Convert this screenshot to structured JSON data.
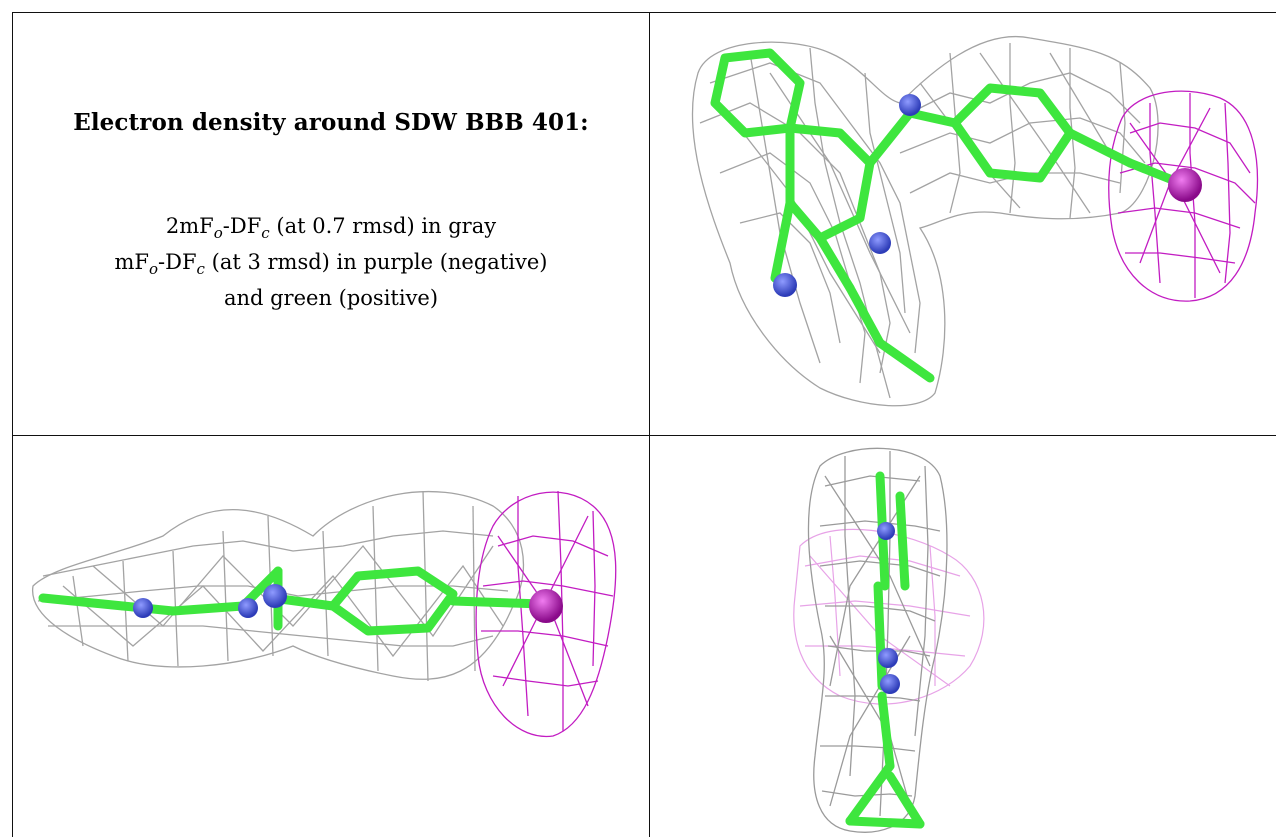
{
  "caption": {
    "title": "Electron density around SDW BBB 401:",
    "line1": "2mFo-DFc (at 0.7 rmsd) in gray",
    "line2": "mFo-DFc (at 3 rmsd) in purple (negative)",
    "line3": "and green (positive)"
  },
  "colors": {
    "mesh_2fofc": "#9a9a9a",
    "mesh_fofc_negative": "#c21cc2",
    "carbon": "#3ee63e",
    "nitrogen": "#3d4fd0",
    "halogen": "#b414b4"
  },
  "panels": [
    {
      "view": "top",
      "icon": "ligand-density-top-view"
    },
    {
      "view": "side",
      "icon": "ligand-density-side-view"
    },
    {
      "view": "end-on",
      "icon": "ligand-density-end-view"
    }
  ]
}
